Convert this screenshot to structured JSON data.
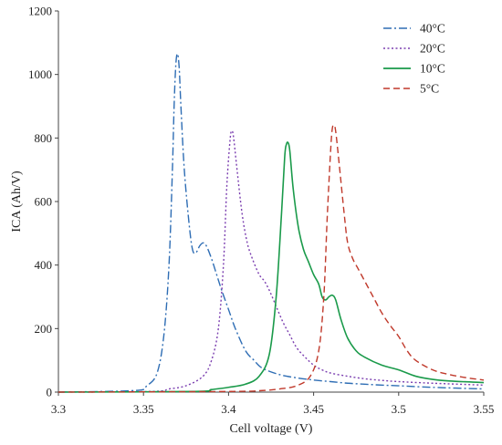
{
  "chart_data": {
    "type": "line",
    "xlabel": "Cell voltage (V)",
    "ylabel": "ICA (Ah/V)",
    "xlim": [
      3.3,
      3.55
    ],
    "ylim": [
      0,
      1200
    ],
    "xticks": [
      "3.3",
      "3.35",
      "3.4",
      "3.45",
      "3.5",
      "3.55"
    ],
    "yticks": [
      "0",
      "200",
      "400",
      "600",
      "800",
      "1000",
      "1200"
    ],
    "grid": false,
    "legend_position": "top-right",
    "series": [
      {
        "name": "40°C",
        "color": "#2e6db4",
        "dash": "dash-dot",
        "x": [
          3.3,
          3.345,
          3.352,
          3.358,
          3.362,
          3.365,
          3.367,
          3.368,
          3.369,
          3.37,
          3.371,
          3.372,
          3.374,
          3.377,
          3.379,
          3.381,
          3.383,
          3.385,
          3.387,
          3.39,
          3.393,
          3.396,
          3.4,
          3.404,
          3.41,
          3.415,
          3.42,
          3.43,
          3.44,
          3.45,
          3.46,
          3.47,
          3.48,
          3.49,
          3.5,
          3.52,
          3.55
        ],
        "y": [
          0,
          5,
          20,
          60,
          180,
          400,
          700,
          900,
          1030,
          1065,
          1020,
          900,
          700,
          520,
          445,
          440,
          460,
          470,
          460,
          420,
          370,
          320,
          260,
          200,
          130,
          100,
          75,
          55,
          45,
          38,
          33,
          28,
          25,
          22,
          20,
          15,
          10
        ]
      },
      {
        "name": "20°C",
        "color": "#7b3fb0",
        "dash": "dotted",
        "x": [
          3.3,
          3.355,
          3.365,
          3.375,
          3.385,
          3.39,
          3.394,
          3.397,
          3.399,
          3.401,
          3.402,
          3.403,
          3.405,
          3.408,
          3.411,
          3.414,
          3.418,
          3.421,
          3.424,
          3.428,
          3.432,
          3.436,
          3.44,
          3.445,
          3.45,
          3.455,
          3.46,
          3.47,
          3.48,
          3.49,
          3.5,
          3.52,
          3.55
        ],
        "y": [
          0,
          2,
          10,
          20,
          50,
          100,
          200,
          400,
          650,
          800,
          822,
          800,
          700,
          560,
          470,
          420,
          370,
          350,
          320,
          270,
          220,
          180,
          140,
          110,
          85,
          70,
          60,
          50,
          42,
          37,
          33,
          28,
          22
        ]
      },
      {
        "name": "10°C",
        "color": "#1a9a4a",
        "dash": "solid",
        "x": [
          3.3,
          3.38,
          3.39,
          3.4,
          3.41,
          3.418,
          3.424,
          3.428,
          3.431,
          3.433,
          3.434,
          3.435,
          3.436,
          3.438,
          3.441,
          3.444,
          3.447,
          3.45,
          3.453,
          3.455,
          3.457,
          3.459,
          3.461,
          3.463,
          3.466,
          3.47,
          3.475,
          3.48,
          3.49,
          3.5,
          3.51,
          3.52,
          3.53,
          3.55
        ],
        "y": [
          0,
          2,
          8,
          15,
          25,
          50,
          120,
          300,
          550,
          740,
          780,
          785,
          760,
          640,
          520,
          450,
          410,
          370,
          340,
          300,
          290,
          300,
          305,
          290,
          230,
          170,
          130,
          110,
          85,
          70,
          50,
          40,
          35,
          30
        ]
      },
      {
        "name": "5°C",
        "color": "#c0392b",
        "dash": "dashed",
        "x": [
          3.3,
          3.4,
          3.42,
          3.43,
          3.44,
          3.448,
          3.453,
          3.456,
          3.458,
          3.46,
          3.461,
          3.462,
          3.463,
          3.465,
          3.468,
          3.47,
          3.473,
          3.476,
          3.48,
          3.485,
          3.49,
          3.495,
          3.5,
          3.505,
          3.51,
          3.52,
          3.53,
          3.54,
          3.55
        ],
        "y": [
          0,
          2,
          5,
          10,
          20,
          50,
          130,
          300,
          550,
          760,
          830,
          840,
          820,
          720,
          560,
          470,
          420,
          390,
          350,
          300,
          250,
          210,
          175,
          130,
          100,
          70,
          55,
          45,
          38
        ]
      }
    ]
  }
}
